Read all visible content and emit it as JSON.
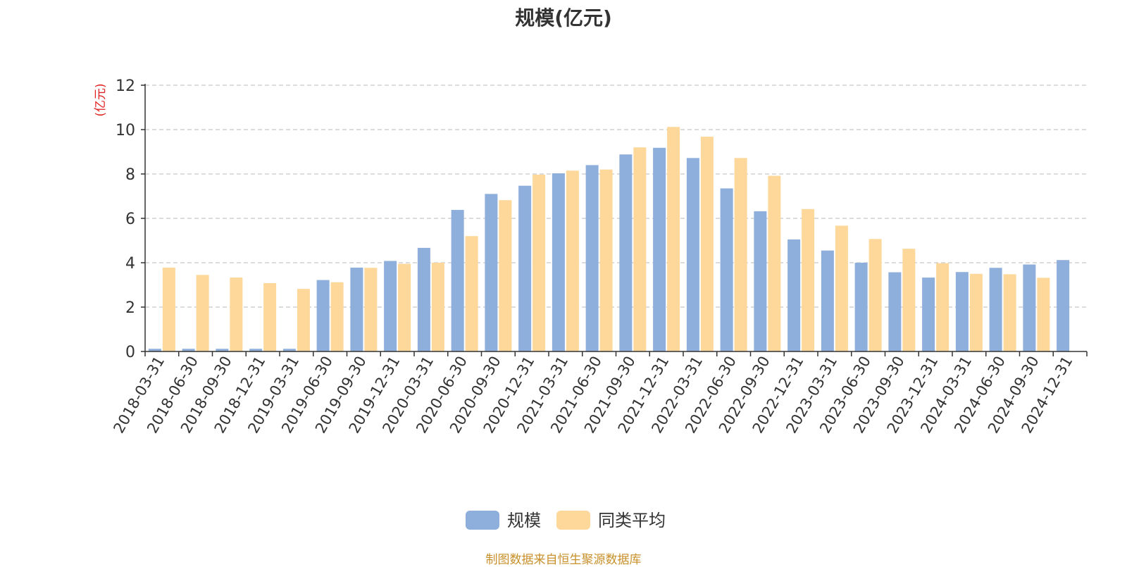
{
  "chart_data": {
    "type": "bar",
    "title": "规模(亿元)",
    "ylabel": "(亿元)",
    "xlabel": "",
    "ylim": [
      0,
      12
    ],
    "yticks": [
      0,
      2,
      4,
      6,
      8,
      10,
      12
    ],
    "grid": true,
    "legend_position": "bottom-center",
    "categories": [
      "2018-03-31",
      "2018-06-30",
      "2018-09-30",
      "2018-12-31",
      "2019-03-31",
      "2019-06-30",
      "2019-09-30",
      "2019-12-31",
      "2020-03-31",
      "2020-06-30",
      "2020-09-30",
      "2020-12-31",
      "2021-03-31",
      "2021-06-30",
      "2021-09-30",
      "2021-12-31",
      "2022-03-31",
      "2022-06-30",
      "2022-09-30",
      "2022-12-31",
      "2023-03-31",
      "2023-06-30",
      "2023-09-30",
      "2023-12-31",
      "2024-03-31",
      "2024-06-30",
      "2024-09-30",
      "2024-12-31"
    ],
    "series": [
      {
        "name": "规模",
        "color": "#8eaedb",
        "values": [
          0.12,
          0.12,
          0.12,
          0.12,
          0.12,
          3.22,
          3.78,
          4.08,
          4.67,
          6.38,
          7.1,
          7.47,
          8.03,
          8.4,
          8.88,
          9.18,
          8.72,
          7.35,
          6.32,
          5.05,
          4.55,
          4.0,
          3.57,
          3.33,
          3.58,
          3.77,
          3.92,
          4.12
        ]
      },
      {
        "name": "同类平均",
        "color": "#fdd89a",
        "values": [
          3.78,
          3.45,
          3.33,
          3.08,
          2.82,
          3.12,
          3.77,
          3.95,
          4.0,
          5.2,
          6.82,
          7.97,
          8.15,
          8.2,
          9.2,
          10.12,
          9.68,
          8.72,
          7.92,
          6.42,
          5.67,
          5.07,
          4.63,
          3.98,
          3.5,
          3.48,
          3.32,
          null
        ]
      }
    ]
  },
  "footer": {
    "source": "制图数据来自恒生聚源数据库"
  }
}
